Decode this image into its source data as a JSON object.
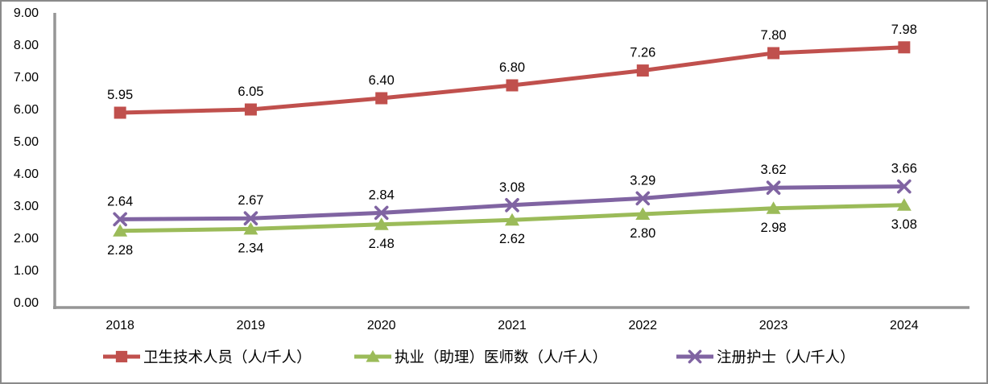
{
  "chart_data": {
    "type": "line",
    "title": "",
    "xlabel": "",
    "ylabel": "",
    "x": [
      "2018",
      "2019",
      "2020",
      "2021",
      "2022",
      "2023",
      "2024"
    ],
    "series": [
      {
        "key": "health-technicians",
        "name": "卫生技术人员（人/千人）",
        "color": "#C0504D",
        "marker": "square",
        "label_position": "above",
        "values": [
          5.95,
          6.05,
          6.4,
          6.8,
          7.26,
          7.8,
          7.98
        ]
      },
      {
        "key": "licensed-assistant-physicians",
        "name": "执业（助理）医师数（人/千人）",
        "color": "#9BBB59",
        "marker": "triangle",
        "label_position": "below",
        "values": [
          2.28,
          2.34,
          2.48,
          2.62,
          2.8,
          2.98,
          3.08
        ]
      },
      {
        "key": "registered-nurses",
        "name": "注册护士（人/千人）",
        "color": "#8064A2",
        "marker": "x",
        "label_position": "above",
        "values": [
          2.64,
          2.67,
          2.84,
          3.08,
          3.29,
          3.62,
          3.66
        ]
      }
    ],
    "ylim": [
      0,
      9
    ],
    "y_tick_step": 1,
    "y_ticks": [
      "0.00",
      "1.00",
      "2.00",
      "3.00",
      "4.00",
      "5.00",
      "6.00",
      "7.00",
      "8.00",
      "9.00"
    ],
    "data_label_format": "0.00",
    "grid": false,
    "legend_position": "bottom"
  },
  "colors": {
    "axis": "#969696",
    "frame_border": "#8A8A8A",
    "text": "#000000",
    "background": "#FFFFFF"
  }
}
